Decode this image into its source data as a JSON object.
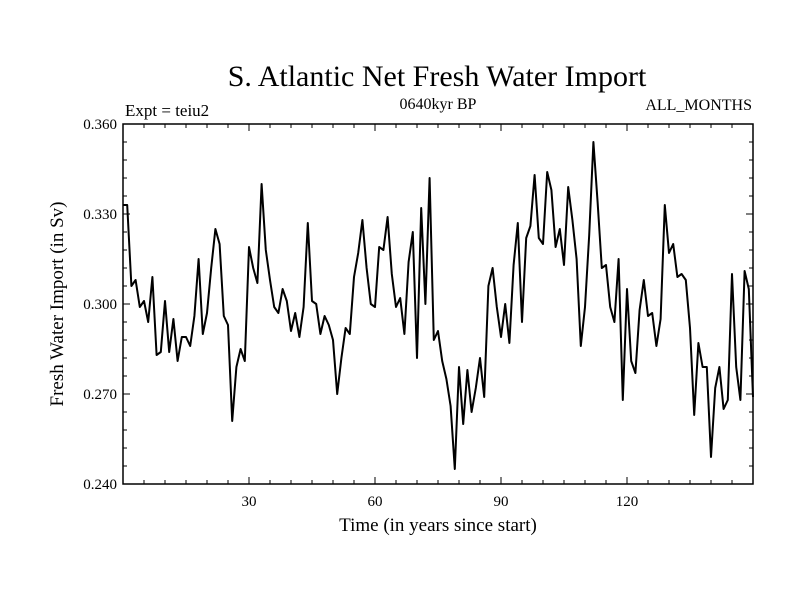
{
  "chart_data": {
    "type": "line",
    "title": "S. Atlantic Net Fresh Water Import",
    "subtitle_left": "Expt = teiu2",
    "subtitle_center": "0640kyr BP",
    "subtitle_right": "ALL_MONTHS",
    "xlabel": "Time (in years since start)",
    "ylabel": "Fresh Water Import (in Sv)",
    "xlim": [
      0,
      150
    ],
    "ylim": [
      0.24,
      0.36
    ],
    "x_ticks": [
      30,
      60,
      90,
      120
    ],
    "x_tick_labels": [
      "30",
      "60",
      "90",
      "120"
    ],
    "y_ticks": [
      0.24,
      0.27,
      0.3,
      0.33,
      0.36
    ],
    "y_tick_labels": [
      "0.240",
      "0.270",
      "0.300",
      "0.330",
      "0.360"
    ],
    "grid": false,
    "series": [
      {
        "name": "Net Fresh Water Import",
        "color": "#000000",
        "x": [
          0,
          1,
          2,
          3,
          4,
          5,
          6,
          7,
          8,
          9,
          10,
          11,
          12,
          13,
          14,
          15,
          16,
          17,
          18,
          19,
          20,
          21,
          22,
          23,
          24,
          25,
          26,
          27,
          28,
          29,
          30,
          31,
          32,
          33,
          34,
          35,
          36,
          37,
          38,
          39,
          40,
          41,
          42,
          43,
          44,
          45,
          46,
          47,
          48,
          49,
          50,
          51,
          52,
          53,
          54,
          55,
          56,
          57,
          58,
          59,
          60,
          61,
          62,
          63,
          64,
          65,
          66,
          67,
          68,
          69,
          70,
          71,
          72,
          73,
          74,
          75,
          76,
          77,
          78,
          79,
          80,
          81,
          82,
          83,
          84,
          85,
          86,
          87,
          88,
          89,
          90,
          91,
          92,
          93,
          94,
          95,
          96,
          97,
          98,
          99,
          100,
          101,
          102,
          103,
          104,
          105,
          106,
          107,
          108,
          109,
          110,
          111,
          112,
          113,
          114,
          115,
          116,
          117,
          118,
          119,
          120,
          121,
          122,
          123,
          124,
          125,
          126,
          127,
          128,
          129,
          130,
          131,
          132,
          133,
          134,
          135,
          136,
          137,
          138,
          139,
          140,
          141,
          142,
          143,
          144,
          145,
          146,
          147,
          148,
          149,
          150
        ],
        "values": [
          0.333,
          0.333,
          0.306,
          0.308,
          0.299,
          0.301,
          0.294,
          0.309,
          0.283,
          0.284,
          0.301,
          0.284,
          0.295,
          0.281,
          0.289,
          0.289,
          0.286,
          0.296,
          0.315,
          0.29,
          0.297,
          0.312,
          0.325,
          0.32,
          0.296,
          0.293,
          0.261,
          0.279,
          0.285,
          0.281,
          0.319,
          0.312,
          0.307,
          0.34,
          0.318,
          0.308,
          0.299,
          0.297,
          0.305,
          0.301,
          0.291,
          0.297,
          0.289,
          0.299,
          0.327,
          0.301,
          0.3,
          0.29,
          0.296,
          0.293,
          0.288,
          0.27,
          0.282,
          0.292,
          0.29,
          0.309,
          0.317,
          0.328,
          0.312,
          0.3,
          0.299,
          0.319,
          0.318,
          0.329,
          0.31,
          0.299,
          0.302,
          0.29,
          0.314,
          0.324,
          0.282,
          0.332,
          0.3,
          0.342,
          0.288,
          0.291,
          0.281,
          0.275,
          0.266,
          0.245,
          0.279,
          0.26,
          0.278,
          0.264,
          0.272,
          0.282,
          0.269,
          0.306,
          0.312,
          0.299,
          0.289,
          0.3,
          0.287,
          0.313,
          0.327,
          0.294,
          0.322,
          0.326,
          0.343,
          0.322,
          0.32,
          0.344,
          0.338,
          0.319,
          0.325,
          0.313,
          0.339,
          0.328,
          0.315,
          0.286,
          0.299,
          0.323,
          0.354,
          0.334,
          0.312,
          0.313,
          0.299,
          0.294,
          0.315,
          0.268,
          0.305,
          0.281,
          0.277,
          0.298,
          0.308,
          0.296,
          0.297,
          0.286,
          0.295,
          0.333,
          0.317,
          0.32,
          0.309,
          0.31,
          0.308,
          0.292,
          0.263,
          0.287,
          0.279,
          0.279,
          0.249,
          0.272,
          0.279,
          0.265,
          0.268,
          0.31,
          0.279,
          0.268,
          0.311,
          0.305,
          0.269
        ]
      }
    ]
  }
}
